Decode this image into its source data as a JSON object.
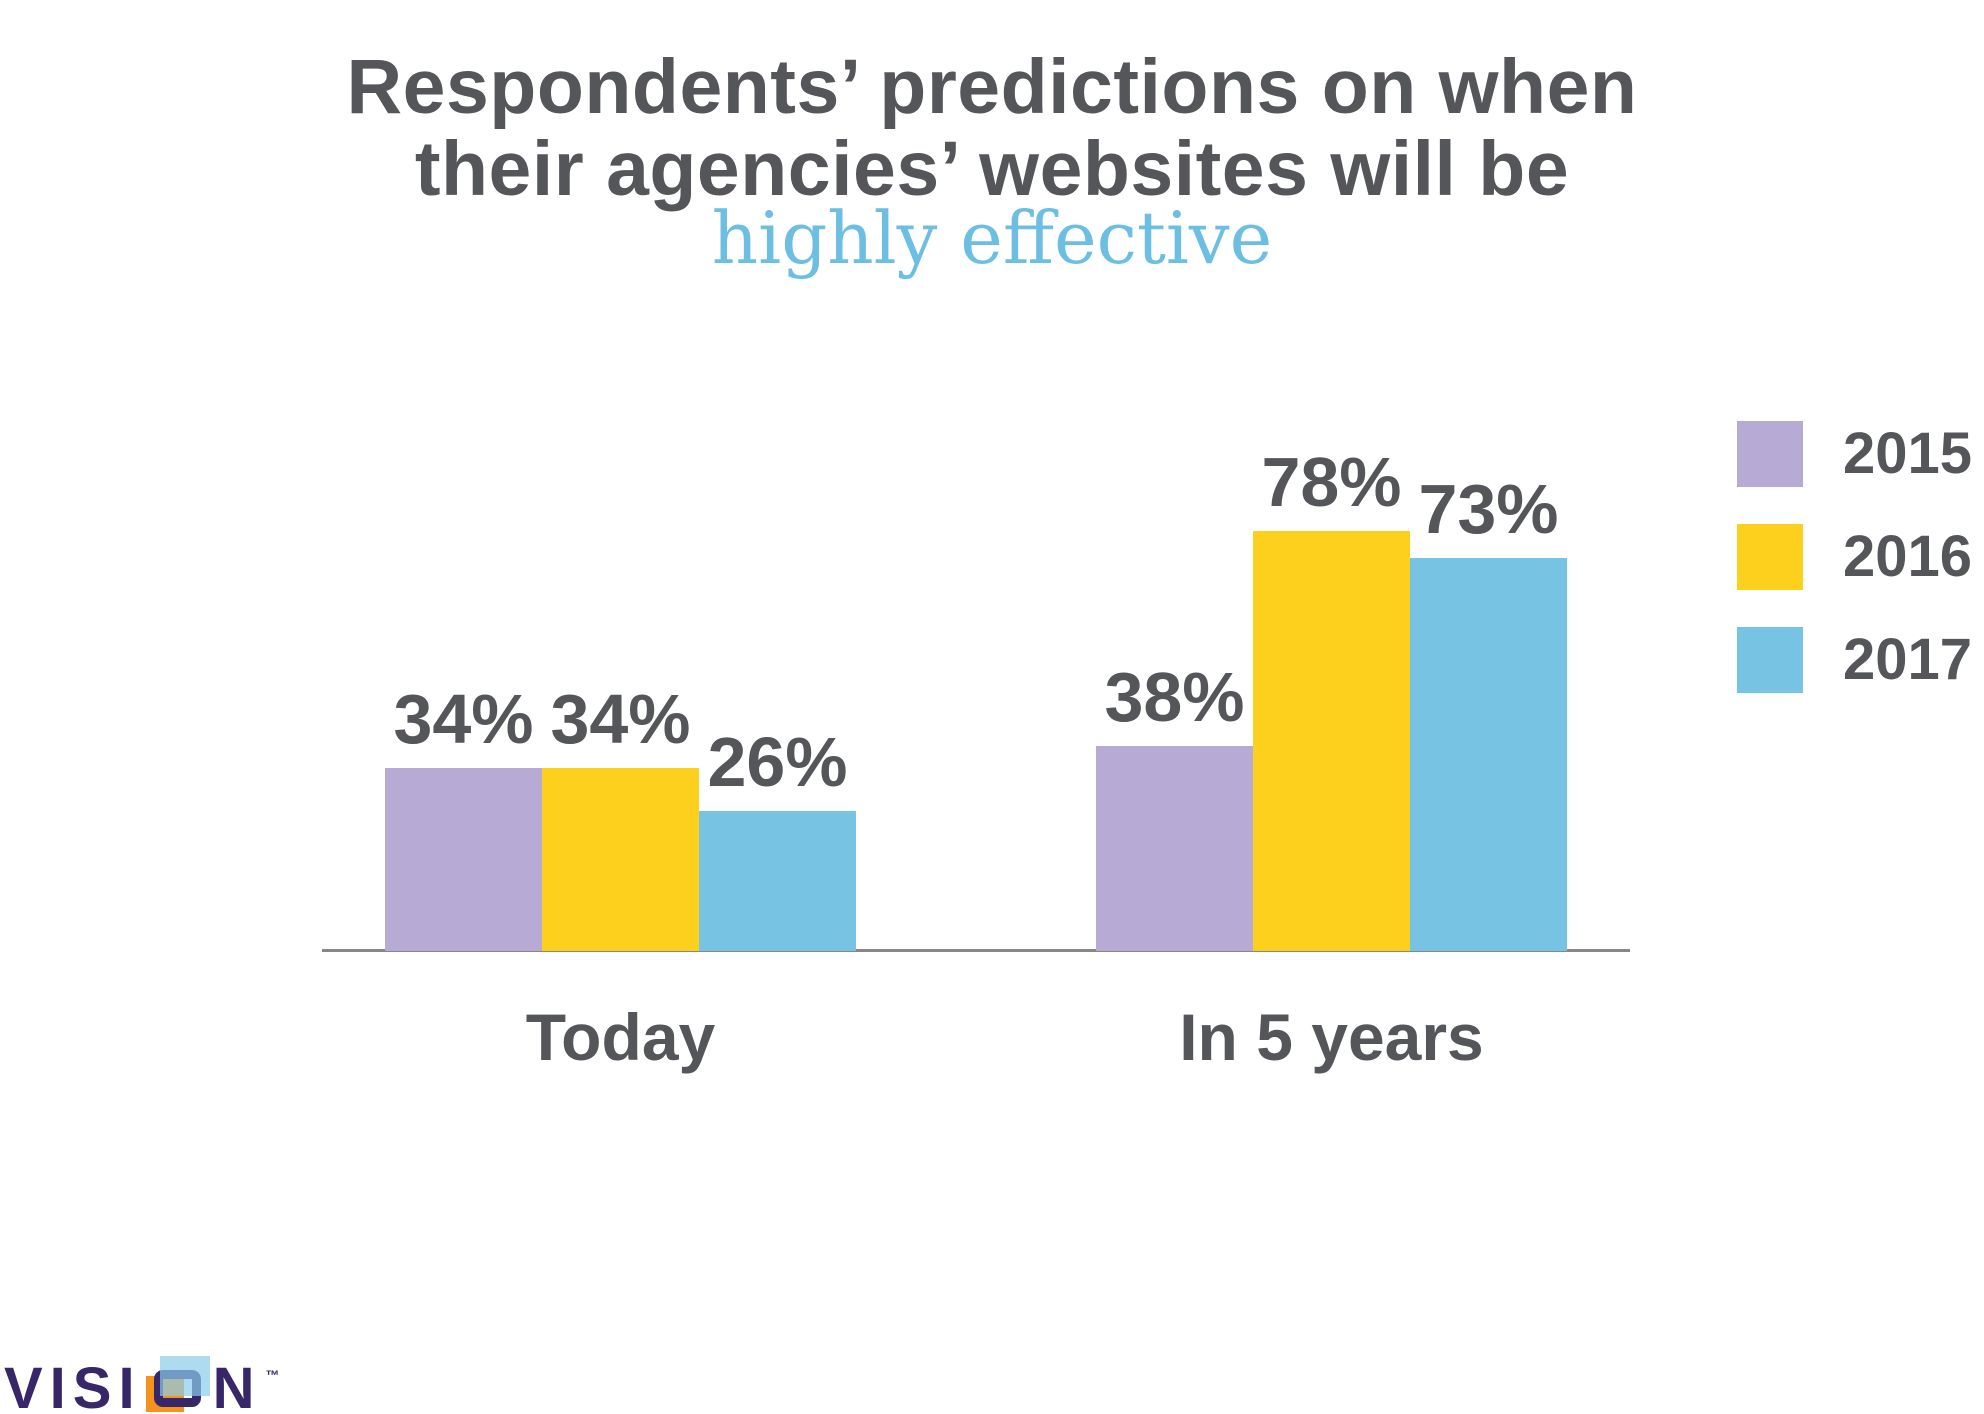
{
  "title": {
    "line1": "Respondents’ predictions on when",
    "line2": "their agencies’ websites will be",
    "highlight": "highly effective"
  },
  "chart_data": {
    "type": "bar",
    "title": "Respondents’ predictions on when their agencies’ websites will be highly effective",
    "categories": [
      "Today",
      "In 5 years"
    ],
    "series": [
      {
        "name": "2015",
        "color": "#B7ABD6",
        "values": [
          34,
          38
        ],
        "labels": [
          "34%",
          "38%"
        ]
      },
      {
        "name": "2016",
        "color": "#FDD01D",
        "values": [
          34,
          78
        ],
        "labels": [
          "34%",
          "78%"
        ]
      },
      {
        "name": "2017",
        "color": "#77C3E3",
        "values": [
          26,
          73
        ],
        "labels": [
          "26%",
          "73%"
        ]
      }
    ],
    "ylim": [
      0,
      100
    ],
    "grid": false,
    "legend_position": "right",
    "value_labels_shown": true
  },
  "colors": {
    "title_text": "#54565A",
    "highlight_text": "#6CBEE3",
    "axis_line": "#87878A",
    "logo_purple": "#382768",
    "logo_orange": "#F6931D",
    "logo_blue": "#8ACDEB"
  },
  "logo": {
    "text_before_mark": "VISI",
    "text_after_mark": "N",
    "trademark": "™"
  }
}
